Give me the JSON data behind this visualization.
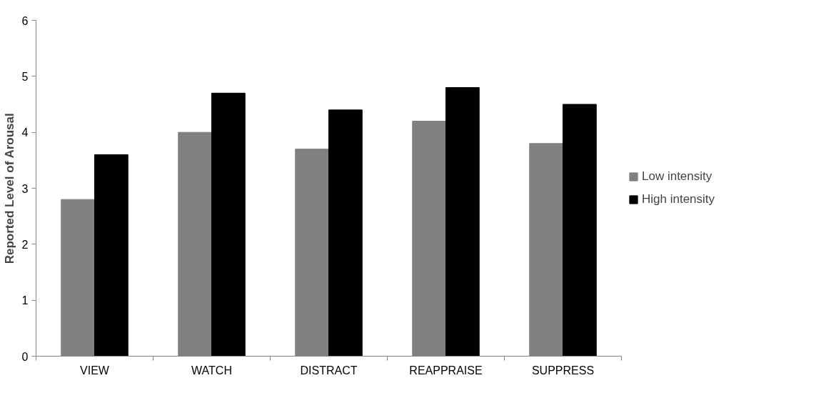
{
  "chart_data": {
    "type": "bar",
    "ylabel": "Reported Level of Arousal",
    "categories": [
      "VIEW",
      "WATCH",
      "DISTRACT",
      "REAPPRAISE",
      "SUPPRESS"
    ],
    "series": [
      {
        "name": "Low intensity",
        "color": "#808080",
        "values": [
          2.8,
          4.0,
          3.7,
          4.2,
          3.8
        ]
      },
      {
        "name": "High intensity",
        "color": "#000000",
        "values": [
          3.6,
          4.7,
          4.4,
          4.8,
          4.5
        ]
      }
    ],
    "ylim": [
      0,
      6
    ],
    "yticks": [
      0,
      1,
      2,
      3,
      4,
      5,
      6
    ],
    "grid": false,
    "legend": "right"
  }
}
